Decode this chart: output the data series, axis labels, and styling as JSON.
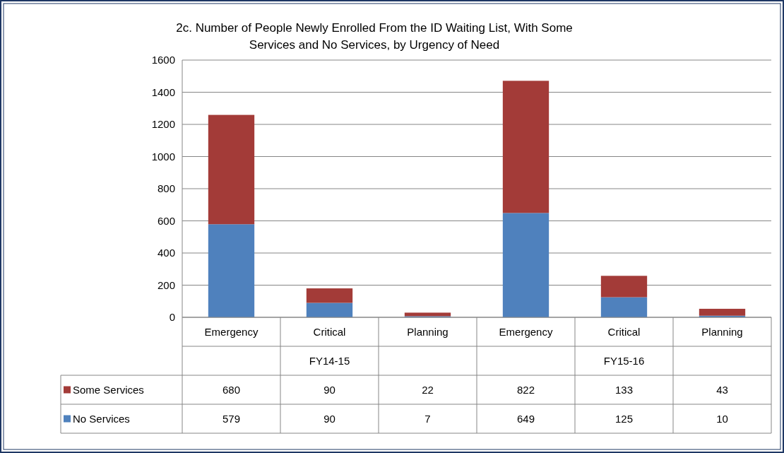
{
  "chart_data": {
    "type": "bar",
    "title": "2c. Number of People Newly Enrolled From the ID Waiting List, With Some Services and No Services, by Urgency of Need",
    "categories": [
      "Emergency",
      "Critical",
      "Planning",
      "Emergency",
      "Critical",
      "Planning"
    ],
    "annotations": [
      "FY14-15",
      "FY15-16"
    ],
    "stacked": true,
    "series": [
      {
        "name": "No Services",
        "color": "#4f81bd",
        "values": [
          579,
          90,
          7,
          649,
          125,
          10
        ]
      },
      {
        "name": "Some Services",
        "color": "#a33b38",
        "values": [
          680,
          90,
          22,
          822,
          133,
          43
        ]
      }
    ],
    "ylim": [
      0,
      1600
    ],
    "yticks": [
      0,
      200,
      400,
      600,
      800,
      1000,
      1200,
      1400,
      1600
    ],
    "grid": "y",
    "legend": "bottom",
    "data_labels": true
  }
}
